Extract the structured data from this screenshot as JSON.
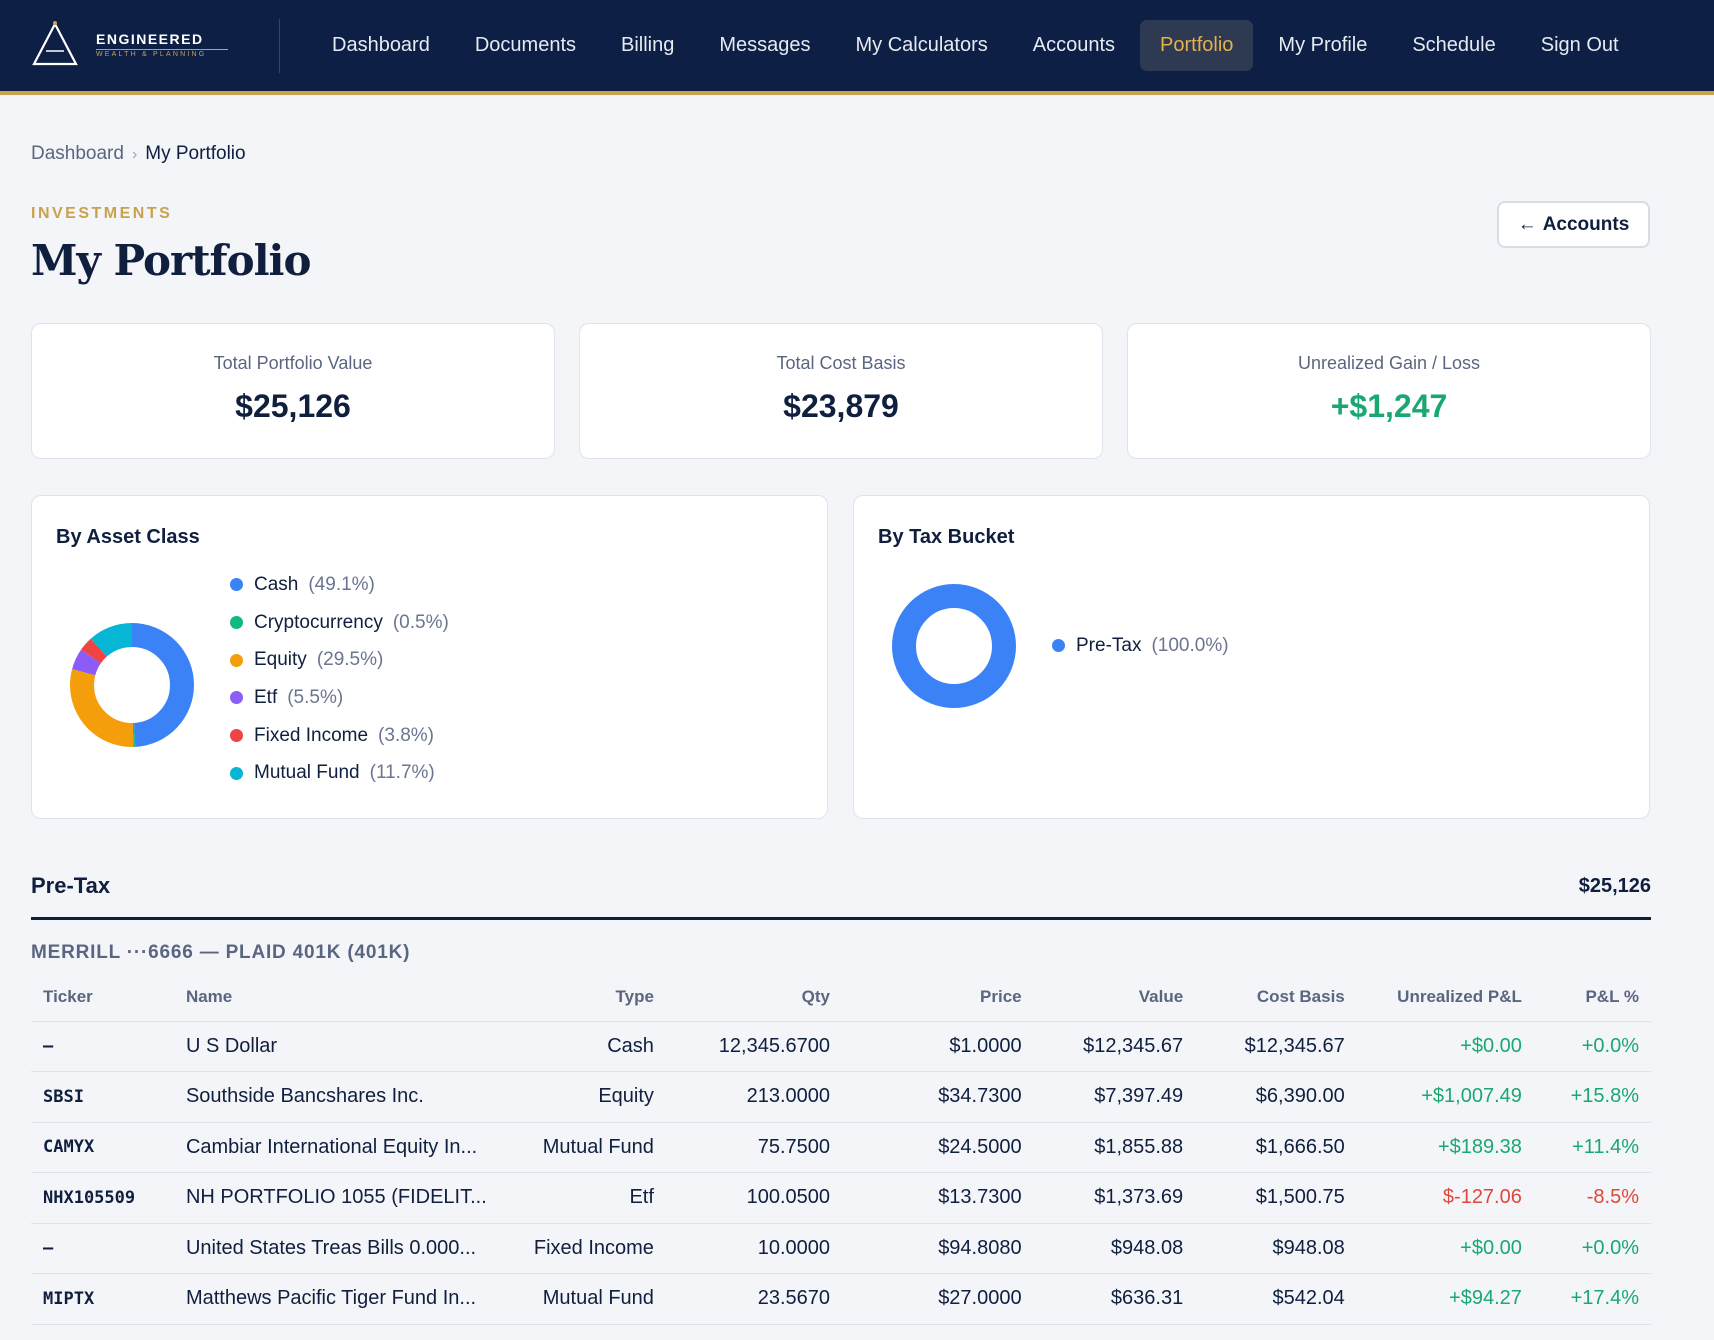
{
  "brand": {
    "name": "ENGINEERED",
    "tagline": "WEALTH & PLANNING"
  },
  "nav": {
    "items": [
      {
        "label": "Dashboard",
        "active": false
      },
      {
        "label": "Documents",
        "active": false
      },
      {
        "label": "Billing",
        "active": false
      },
      {
        "label": "Messages",
        "active": false
      },
      {
        "label": "My Calculators",
        "active": false
      },
      {
        "label": "Accounts",
        "active": false
      },
      {
        "label": "Portfolio",
        "active": true
      },
      {
        "label": "My Profile",
        "active": false
      },
      {
        "label": "Schedule",
        "active": false
      },
      {
        "label": "Sign Out",
        "active": false
      }
    ]
  },
  "breadcrumb": {
    "parent": "Dashboard",
    "separator": "›",
    "current": "My Portfolio"
  },
  "page": {
    "eyebrow": "INVESTMENTS",
    "title": "My Portfolio",
    "back_arrow": "←",
    "back_label": "Accounts"
  },
  "stats": [
    {
      "label": "Total Portfolio Value",
      "value": "$25,126"
    },
    {
      "label": "Total Cost Basis",
      "value": "$23,879"
    },
    {
      "label": "Unrealized Gain / Loss",
      "value": "+$1,247"
    }
  ],
  "allocation": {
    "asset_class": {
      "title": "By Asset Class",
      "items": [
        {
          "label": "Cash",
          "pct": "(49.1%)",
          "value": 49.1,
          "color": "#3b82f6"
        },
        {
          "label": "Cryptocurrency",
          "pct": "(0.5%)",
          "value": 0.5,
          "color": "#10b981"
        },
        {
          "label": "Equity",
          "pct": "(29.5%)",
          "value": 29.5,
          "color": "#f59e0b"
        },
        {
          "label": "Etf",
          "pct": "(5.5%)",
          "value": 5.5,
          "color": "#8b5cf6"
        },
        {
          "label": "Fixed Income",
          "pct": "(3.8%)",
          "value": 3.8,
          "color": "#ef4444"
        },
        {
          "label": "Mutual Fund",
          "pct": "(11.7%)",
          "value": 11.7,
          "color": "#06b6d4"
        }
      ]
    },
    "tax_bucket": {
      "title": "By Tax Bucket",
      "items": [
        {
          "label": "Pre-Tax",
          "pct": "(100.0%)",
          "value": 100.0,
          "color": "#3b82f6"
        }
      ]
    }
  },
  "holdings": {
    "bucket": {
      "name": "Pre-Tax",
      "total": "$25,126"
    },
    "account_title": "MERRILL ···6666 — PLAID 401K (401K)",
    "columns": [
      "Ticker",
      "Name",
      "Type",
      "Qty",
      "Price",
      "Value",
      "Cost Basis",
      "Unrealized P&L",
      "P&L %"
    ],
    "rows": [
      {
        "ticker": "—",
        "name": "U S Dollar",
        "type": "Cash",
        "qty": "12,345.6700",
        "price": "$1.0000",
        "value": "$12,345.67",
        "cost_basis": "$12,345.67",
        "pnl": "+$0.00",
        "pnl_pct": "+0.0%",
        "direction": "pos"
      },
      {
        "ticker": "SBSI",
        "name": "Southside Bancshares Inc.",
        "type": "Equity",
        "qty": "213.0000",
        "price": "$34.7300",
        "value": "$7,397.49",
        "cost_basis": "$6,390.00",
        "pnl": "+$1,007.49",
        "pnl_pct": "+15.8%",
        "direction": "pos"
      },
      {
        "ticker": "CAMYX",
        "name": "Cambiar International Equity In...",
        "type": "Mutual Fund",
        "qty": "75.7500",
        "price": "$24.5000",
        "value": "$1,855.88",
        "cost_basis": "$1,666.50",
        "pnl": "+$189.38",
        "pnl_pct": "+11.4%",
        "direction": "pos"
      },
      {
        "ticker": "NHX105509",
        "name": "NH PORTFOLIO 1055 (FIDELIT...",
        "type": "Etf",
        "qty": "100.0500",
        "price": "$13.7300",
        "value": "$1,373.69",
        "cost_basis": "$1,500.75",
        "pnl": "$-127.06",
        "pnl_pct": "-8.5%",
        "direction": "neg"
      },
      {
        "ticker": "—",
        "name": "United States Treas Bills 0.000...",
        "type": "Fixed Income",
        "qty": "10.0000",
        "price": "$94.8080",
        "value": "$948.08",
        "cost_basis": "$948.08",
        "pnl": "+$0.00",
        "pnl_pct": "+0.0%",
        "direction": "pos"
      },
      {
        "ticker": "MIPTX",
        "name": "Matthews Pacific Tiger Fund In...",
        "type": "Mutual Fund",
        "qty": "23.5670",
        "price": "$27.0000",
        "value": "$636.31",
        "cost_basis": "$542.04",
        "pnl": "+$94.27",
        "pnl_pct": "+17.4%",
        "direction": "pos"
      }
    ]
  }
}
